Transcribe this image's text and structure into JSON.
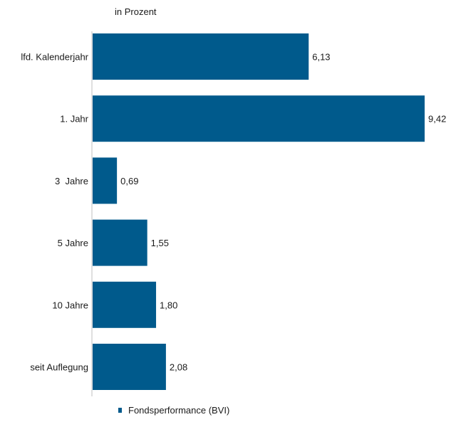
{
  "chart_data": {
    "type": "bar",
    "orientation": "horizontal",
    "unit_label": "in Prozent",
    "categories": [
      "lfd. Kalenderjahr",
      "1. Jahr",
      "3  Jahre",
      "5 Jahre",
      "10 Jahre",
      "seit Auflegung"
    ],
    "series": [
      {
        "name": "Fondsperformance (BVI)",
        "values": [
          6.13,
          9.42,
          0.69,
          1.55,
          1.8,
          2.08
        ],
        "value_labels": [
          "6,13",
          "9,42",
          "0,69",
          "1,55",
          "1,80",
          "2,08"
        ],
        "color": "#005a8c"
      }
    ],
    "xlim": [
      0,
      9.42
    ],
    "grid": false,
    "legend": "bottom"
  }
}
